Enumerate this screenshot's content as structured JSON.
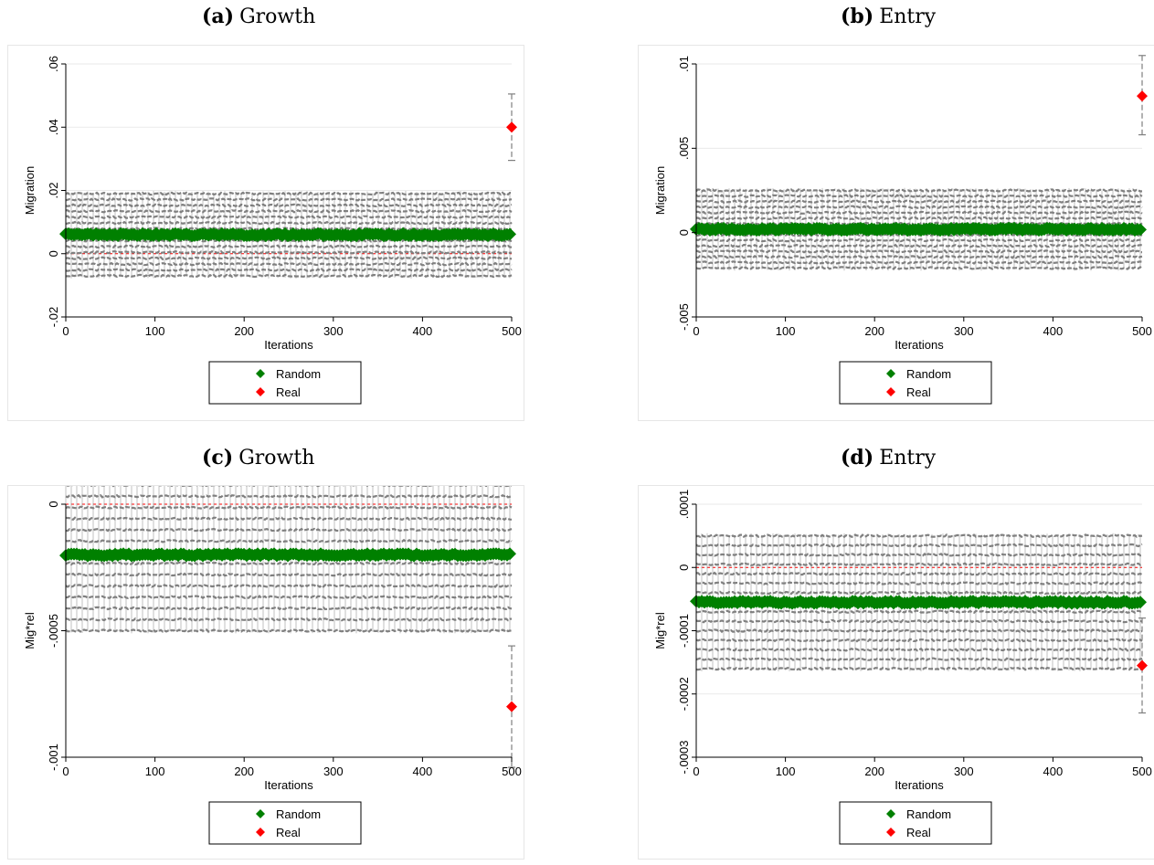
{
  "panels": [
    {
      "letter": "(a)",
      "title": "Growth"
    },
    {
      "letter": "(b)",
      "title": "Entry"
    },
    {
      "letter": "(c)",
      "title": "Growth"
    },
    {
      "letter": "(d)",
      "title": "Entry"
    }
  ],
  "colors": {
    "random": "#008000",
    "real": "#ff0000",
    "whisker": "#7f7f7f",
    "band": "#808080",
    "refline": "#ff0000",
    "grid": "#eaeaea"
  },
  "chart_data": [
    {
      "type": "scatter",
      "title": "Growth",
      "xlabel": "Iterations",
      "ylabel": "Migration",
      "xlim": [
        0,
        500
      ],
      "ylim": [
        -0.02,
        0.06
      ],
      "xticks": [
        0,
        100,
        200,
        300,
        400,
        500
      ],
      "yticks": [
        -0.02,
        0,
        0.02,
        0.04,
        0.06
      ],
      "yticklabels": [
        "-.02",
        "0",
        ".02",
        ".04",
        ".06"
      ],
      "grid": true,
      "legend_position": "bottom",
      "reference_line_y": 0,
      "series": [
        {
          "name": "Random",
          "x": [
            0,
            500
          ],
          "y": [
            0.006,
            0.006
          ],
          "ci_low": -0.007,
          "ci_high": 0.019
        },
        {
          "name": "Real",
          "x": [
            500
          ],
          "y": [
            0.04
          ],
          "ci_low": [
            0.0295
          ],
          "ci_high": [
            0.0505
          ]
        }
      ]
    },
    {
      "type": "scatter",
      "title": "Entry",
      "xlabel": "Iterations",
      "ylabel": "Migration",
      "xlim": [
        0,
        500
      ],
      "ylim": [
        -0.005,
        0.01
      ],
      "xticks": [
        0,
        100,
        200,
        300,
        400,
        500
      ],
      "yticks": [
        -0.005,
        0,
        0.005,
        0.01
      ],
      "yticklabels": [
        "-.005",
        "0",
        ".005",
        ".01"
      ],
      "grid": true,
      "legend_position": "bottom",
      "reference_line_y": 0,
      "series": [
        {
          "name": "Random",
          "x": [
            0,
            500
          ],
          "y": [
            0.0002,
            0.0002
          ],
          "ci_low": -0.0021,
          "ci_high": 0.0025
        },
        {
          "name": "Real",
          "x": [
            500
          ],
          "y": [
            0.0081
          ],
          "ci_low": [
            0.0058
          ],
          "ci_high": [
            0.0105
          ]
        }
      ]
    },
    {
      "type": "scatter",
      "title": "Growth",
      "xlabel": "Iterations",
      "ylabel": "Mig*rel",
      "xlim": [
        0,
        500
      ],
      "ylim": [
        -0.001,
        0
      ],
      "xticks": [
        0,
        100,
        200,
        300,
        400,
        500
      ],
      "yticks": [
        -0.001,
        -0.0005,
        0
      ],
      "yticklabels": [
        "-.001",
        "-.0005",
        "0"
      ],
      "grid": true,
      "legend_position": "bottom",
      "reference_line_y": 0,
      "series": [
        {
          "name": "Random",
          "x": [
            0,
            500
          ],
          "y": [
            -0.0002,
            -0.0002
          ],
          "ci_low": -0.0005,
          "ci_high": 0.00012
        },
        {
          "name": "Real",
          "x": [
            500
          ],
          "y": [
            -0.0008
          ],
          "ci_low": [
            -0.00104
          ],
          "ci_high": [
            -0.00056
          ]
        }
      ]
    },
    {
      "type": "scatter",
      "title": "Entry",
      "xlabel": "Iterations",
      "ylabel": "Mig*rel",
      "xlim": [
        0,
        500
      ],
      "ylim": [
        -0.0003,
        0.0001
      ],
      "xticks": [
        0,
        100,
        200,
        300,
        400,
        500
      ],
      "yticks": [
        -0.0003,
        -0.0002,
        -0.0001,
        0,
        0.0001
      ],
      "yticklabels": [
        "-.0003",
        "-.0002",
        "-.0001",
        "0",
        ".0001"
      ],
      "grid": true,
      "legend_position": "bottom",
      "reference_line_y": 0,
      "series": [
        {
          "name": "Random",
          "x": [
            0,
            500
          ],
          "y": [
            -5.5e-05,
            -5.5e-05
          ],
          "ci_low": -0.00016,
          "ci_high": 5e-05
        },
        {
          "name": "Real",
          "x": [
            500
          ],
          "y": [
            -0.000155
          ],
          "ci_low": [
            -0.00023
          ],
          "ci_high": [
            -8e-05
          ]
        }
      ]
    }
  ]
}
